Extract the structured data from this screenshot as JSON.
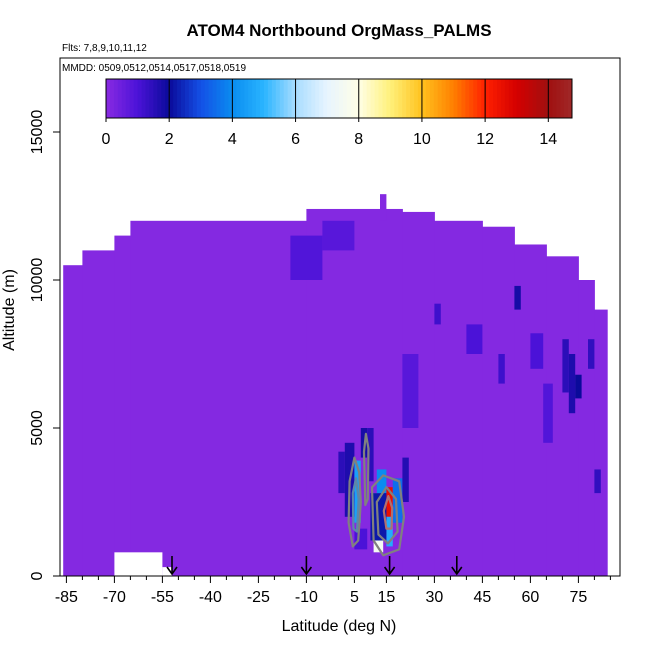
{
  "chart_data": {
    "type": "heatmap",
    "title": "ATOM4 Northbound OrgMass_PALMS",
    "subtitle_flights": "Flts: 7,8,9,10,11,12",
    "subtitle_dates": "MMDD: 0509,0512,0514,0517,0518,0519",
    "xlabel": "Latitude (deg N)",
    "ylabel": "Altitude (m)",
    "xlim": [
      -87,
      88
    ],
    "ylim": [
      0,
      17500
    ],
    "x_ticks": [
      -85,
      -70,
      -55,
      -40,
      -25,
      -10,
      5,
      15,
      30,
      45,
      60,
      75
    ],
    "y_ticks": [
      0,
      5000,
      10000,
      15000
    ],
    "colorbar": {
      "ticks": [
        0,
        2,
        4,
        6,
        8,
        10,
        12,
        14
      ],
      "min": 0,
      "max": 14.75,
      "stops": [
        {
          "v": 0,
          "color": "#8a2be2"
        },
        {
          "v": 1,
          "color": "#4b12d8"
        },
        {
          "v": 2,
          "color": "#0a0a9a"
        },
        {
          "v": 3,
          "color": "#1450e6"
        },
        {
          "v": 4,
          "color": "#0a8cf0"
        },
        {
          "v": 5,
          "color": "#2ab4ff"
        },
        {
          "v": 6,
          "color": "#a8dcff"
        },
        {
          "v": 7,
          "color": "#e8f4ff"
        },
        {
          "v": 8,
          "color": "#ffffe6"
        },
        {
          "v": 9,
          "color": "#fff07a"
        },
        {
          "v": 10,
          "color": "#ffc21e"
        },
        {
          "v": 11,
          "color": "#ff7f00"
        },
        {
          "v": 12,
          "color": "#ff2000"
        },
        {
          "v": 13,
          "color": "#d40000"
        },
        {
          "v": 14,
          "color": "#a01010"
        },
        {
          "v": 14.75,
          "color": "#a02828"
        }
      ]
    },
    "background_value": 0.1,
    "coverage_columns": [
      {
        "x0": -86,
        "x1": -80,
        "top": 10500
      },
      {
        "x0": -80,
        "x1": -70,
        "top": 11000
      },
      {
        "x0": -70,
        "x1": -65,
        "top": 11500
      },
      {
        "x0": -65,
        "x1": -10,
        "top": 12000
      },
      {
        "x0": -10,
        "x1": 20,
        "top": 12400
      },
      {
        "x0": 20,
        "x1": 30,
        "top": 12300
      },
      {
        "x0": 30,
        "x1": 45,
        "top": 12000
      },
      {
        "x0": 45,
        "x1": 55,
        "top": 11800
      },
      {
        "x0": 55,
        "x1": 65,
        "top": 11200
      },
      {
        "x0": 65,
        "x1": 75,
        "top": 10800
      },
      {
        "x0": 75,
        "x1": 80,
        "top": 10000
      },
      {
        "x0": 80,
        "x1": 84,
        "top": 9000
      }
    ],
    "bottom_gaps": [
      {
        "x0": -86,
        "x1": -70,
        "top": 0
      },
      {
        "x0": -70,
        "x1": -55,
        "top": 800
      },
      {
        "x0": -55,
        "x1": -52,
        "top": 300
      }
    ],
    "peak_tower": {
      "x0": 13,
      "x1": 15,
      "y0": 12000,
      "y1": 12900
    },
    "cells": [
      {
        "x0": 0,
        "x1": 2,
        "y0": 2800,
        "y1": 4200,
        "v": 1.5
      },
      {
        "x0": 2,
        "x1": 5,
        "y0": 2000,
        "y1": 4500,
        "v": 1.7
      },
      {
        "x0": 5,
        "x1": 7,
        "y0": 1800,
        "y1": 3900,
        "v": 4.5
      },
      {
        "x0": 7,
        "x1": 9,
        "y0": 4000,
        "y1": 5000,
        "v": 1.8
      },
      {
        "x0": 9,
        "x1": 11,
        "y0": 3200,
        "y1": 5000,
        "v": 1.5
      },
      {
        "x0": 11,
        "x1": 14,
        "y0": 1800,
        "y1": 2800,
        "v": 6.2
      },
      {
        "x0": 11,
        "x1": 14,
        "y0": 800,
        "y1": 1800,
        "v": 7.5
      },
      {
        "x0": 12,
        "x1": 15,
        "y0": 2800,
        "y1": 3600,
        "v": 4.0
      },
      {
        "x0": 15,
        "x1": 17,
        "y0": 2000,
        "y1": 3000,
        "v": 12.5
      },
      {
        "x0": 15,
        "x1": 17,
        "y0": 1000,
        "y1": 2000,
        "v": 4.8
      },
      {
        "x0": 17,
        "x1": 20,
        "y0": 1800,
        "y1": 3300,
        "v": 3.5
      },
      {
        "x0": 20,
        "x1": 22,
        "y0": 2500,
        "y1": 4000,
        "v": 1.6
      },
      {
        "x0": 30,
        "x1": 32,
        "y0": 8500,
        "y1": 9200,
        "v": 1.2
      },
      {
        "x0": 40,
        "x1": 45,
        "y0": 7500,
        "y1": 8500,
        "v": 1.0
      },
      {
        "x0": 50,
        "x1": 52,
        "y0": 6500,
        "y1": 7500,
        "v": 1.2
      },
      {
        "x0": 55,
        "x1": 57,
        "y0": 9000,
        "y1": 9800,
        "v": 1.8
      },
      {
        "x0": 60,
        "x1": 64,
        "y0": 7000,
        "y1": 8200,
        "v": 1.0
      },
      {
        "x0": 70,
        "x1": 72,
        "y0": 6200,
        "y1": 8000,
        "v": 1.5
      },
      {
        "x0": 72,
        "x1": 74,
        "y0": 5500,
        "y1": 7500,
        "v": 1.7
      },
      {
        "x0": 74,
        "x1": 76,
        "y0": 6000,
        "y1": 6800,
        "v": 2.0
      },
      {
        "x0": 78,
        "x1": 80,
        "y0": 7000,
        "y1": 8000,
        "v": 1.4
      },
      {
        "x0": 80,
        "x1": 82,
        "y0": 2800,
        "y1": 3600,
        "v": 1.4
      },
      {
        "x0": 64,
        "x1": 67,
        "y0": 4500,
        "y1": 6500,
        "v": 0.9
      },
      {
        "x0": 20,
        "x1": 25,
        "y0": 5000,
        "y1": 7500,
        "v": 0.8
      },
      {
        "x0": -15,
        "x1": -5,
        "y0": 10000,
        "y1": 11500,
        "v": 0.9
      },
      {
        "x0": -5,
        "x1": 5,
        "y0": 11000,
        "y1": 12000,
        "v": 0.8
      },
      {
        "x0": 10,
        "x1": 15,
        "y0": 1200,
        "y1": 2800,
        "v": 2.2
      },
      {
        "x0": 5,
        "x1": 9,
        "y0": 900,
        "y1": 1600,
        "v": 1.0
      }
    ],
    "contours": [
      {
        "points": [
          [
            3.5,
            3200
          ],
          [
            5,
            4000
          ],
          [
            6.5,
            3500
          ],
          [
            7,
            2500
          ],
          [
            6.2,
            1200
          ],
          [
            4.5,
            1000
          ],
          [
            3.2,
            1800
          ]
        ],
        "color": "#808080"
      },
      {
        "points": [
          [
            4.5,
            2800
          ],
          [
            5.5,
            3300
          ],
          [
            6.3,
            2600
          ],
          [
            5.8,
            1500
          ],
          [
            4.7,
            1600
          ]
        ],
        "color": "#5d87a8"
      },
      {
        "points": [
          [
            10.5,
            3000
          ],
          [
            14,
            3400
          ],
          [
            19,
            3200
          ],
          [
            20.5,
            2000
          ],
          [
            19,
            900
          ],
          [
            14,
            700
          ],
          [
            11,
            1200
          ]
        ],
        "color": "#808080"
      },
      {
        "points": [
          [
            12,
            2500
          ],
          [
            15,
            3000
          ],
          [
            18,
            2600
          ],
          [
            18.5,
            1500
          ],
          [
            15.5,
            1100
          ],
          [
            12.5,
            1400
          ]
        ],
        "color": "#808080"
      },
      {
        "points": [
          [
            14.2,
            2200
          ],
          [
            15.6,
            2700
          ],
          [
            16.8,
            2300
          ],
          [
            16.6,
            1600
          ],
          [
            15,
            1600
          ]
        ],
        "color": "#b07070"
      },
      {
        "points": [
          [
            8,
            4200
          ],
          [
            8.6,
            4800
          ],
          [
            9.4,
            4300
          ],
          [
            9.2,
            2600
          ],
          [
            8.4,
            2400
          ]
        ],
        "color": "#808080"
      }
    ],
    "flight_markers": [
      -52,
      -10,
      16,
      37
    ]
  }
}
